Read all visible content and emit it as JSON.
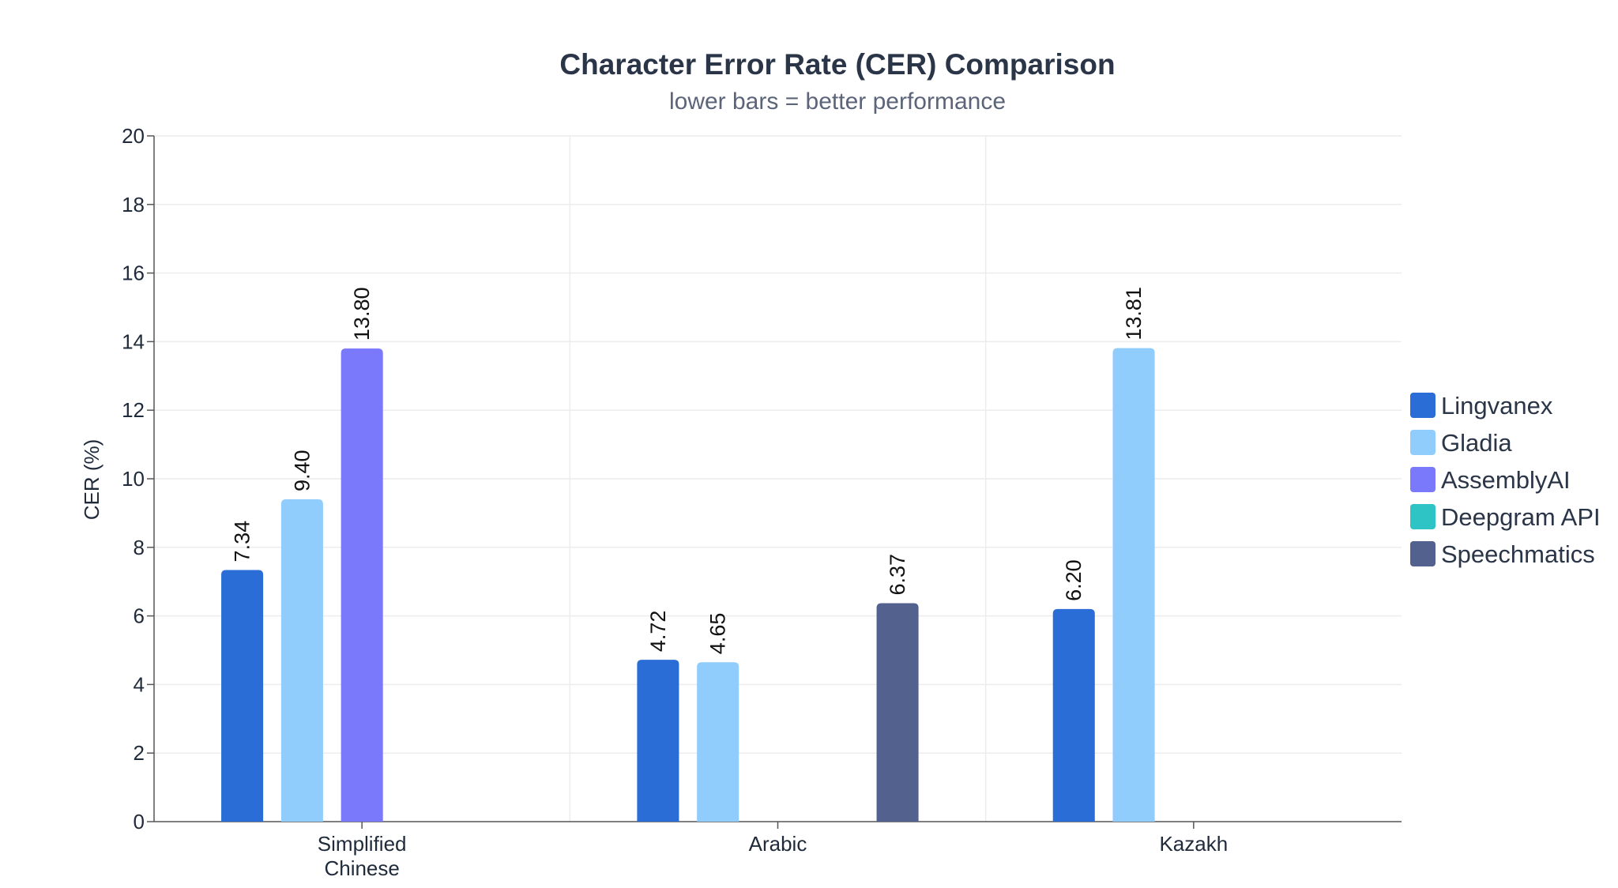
{
  "chart_data": {
    "type": "bar",
    "title": "Character Error Rate (CER) Comparison",
    "subtitle": "lower bars = better performance",
    "ylabel": "CER (%)",
    "xlabel": "",
    "ylim": [
      0,
      20
    ],
    "yticks": [
      0,
      2,
      4,
      6,
      8,
      10,
      12,
      14,
      16,
      18,
      20
    ],
    "categories": [
      [
        "Simplified",
        "Chinese"
      ],
      [
        "Arabic"
      ],
      [
        "Kazakh"
      ]
    ],
    "grid": true,
    "legend_position": "right",
    "series": [
      {
        "name": "Lingvanex",
        "color": "#2a6dd6",
        "values": [
          7.34,
          4.72,
          6.2
        ],
        "labels": [
          "7.34",
          "4.72",
          "6.20"
        ]
      },
      {
        "name": "Gladia",
        "color": "#90cdfc",
        "values": [
          9.4,
          4.65,
          13.81
        ],
        "labels": [
          "9.40",
          "4.65",
          "13.81"
        ]
      },
      {
        "name": "AssemblyAI",
        "color": "#7a78fb",
        "values": [
          13.8,
          null,
          null
        ],
        "labels": [
          "13.80",
          "",
          ""
        ]
      },
      {
        "name": "Deepgram API",
        "color": "#2ec4c6",
        "values": [
          null,
          null,
          null
        ],
        "labels": [
          "",
          "",
          ""
        ]
      },
      {
        "name": "Speechmatics",
        "color": "#52618d",
        "values": [
          null,
          6.37,
          null
        ],
        "labels": [
          "",
          "6.37",
          ""
        ]
      }
    ]
  }
}
